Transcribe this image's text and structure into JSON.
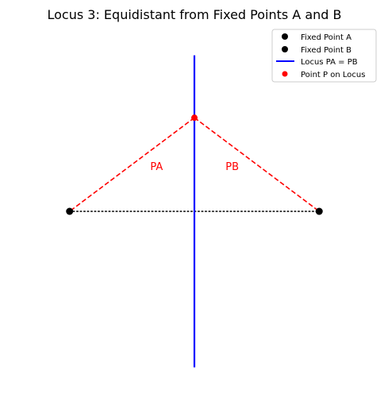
{
  "title": "Locus 3: Equidistant from Fixed Points A and B",
  "colors": {
    "fixed_point": "#000000",
    "locus": "#0000ff",
    "point_p": "#ff0000",
    "segment": "#ff0000",
    "label": "#ff0000",
    "baseline": "#000000"
  },
  "chart_data": {
    "type": "scatter",
    "title": "Locus 3: Equidistant from Fixed Points A and B",
    "xlim": [
      -2.2,
      2.2
    ],
    "ylim": [
      -2.8,
      2.8
    ],
    "axes_visible": false,
    "grid": false,
    "legend_position": "top-right",
    "points": {
      "A": [
        -2,
        0
      ],
      "B": [
        2,
        0
      ],
      "P": [
        0,
        1.5
      ]
    },
    "locus": {
      "x": 0,
      "y_range": [
        -2.5,
        2.5
      ]
    },
    "segments": [
      {
        "label": "PA",
        "from": "P",
        "to": "A",
        "style": "dashed"
      },
      {
        "label": "PB",
        "from": "P",
        "to": "B",
        "style": "dashed"
      },
      {
        "label": "",
        "from": "A",
        "to": "B",
        "style": "dotted"
      }
    ],
    "legend": [
      {
        "label": "Fixed Point A",
        "marker": "dot",
        "color": "#000000"
      },
      {
        "label": "Fixed Point B",
        "marker": "dot",
        "color": "#000000"
      },
      {
        "label": "Locus PA = PB",
        "marker": "line",
        "color": "#0000ff"
      },
      {
        "label": "Point P on Locus",
        "marker": "dot",
        "color": "#ff0000"
      }
    ]
  }
}
